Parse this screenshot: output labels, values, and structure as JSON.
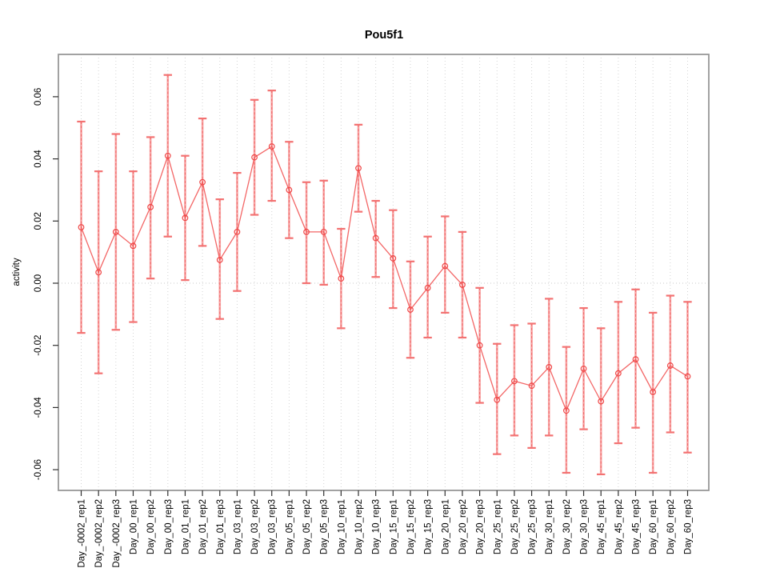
{
  "chart_data": {
    "type": "line",
    "title": "Pou5f1",
    "xlabel": "",
    "ylabel": "activity",
    "legend_position": "none",
    "grid": "vertical-dotted",
    "zero_reference_line": true,
    "ylim": [
      -0.067,
      0.074
    ],
    "yticks": [
      {
        "value": 0.06,
        "label": "0.06"
      },
      {
        "value": 0.04,
        "label": "0.04"
      },
      {
        "value": 0.02,
        "label": "0.02"
      },
      {
        "value": 0.0,
        "label": "0.00"
      },
      {
        "value": -0.02,
        "label": "-0.02"
      },
      {
        "value": -0.04,
        "label": "-0.04"
      },
      {
        "value": -0.06,
        "label": "-0.06"
      }
    ],
    "categories": [
      "Day_-0002_rep1",
      "Day_-0002_rep2",
      "Day_-0002_rep3",
      "Day_00_rep1",
      "Day_00_rep2",
      "Day_00_rep3",
      "Day_01_rep1",
      "Day_01_rep2",
      "Day_01_rep3",
      "Day_03_rep1",
      "Day_03_rep2",
      "Day_03_rep3",
      "Day_05_rep1",
      "Day_05_rep2",
      "Day_05_rep3",
      "Day_10_rep1",
      "Day_10_rep2",
      "Day_10_rep3",
      "Day_15_rep1",
      "Day_15_rep2",
      "Day_15_rep3",
      "Day_20_rep1",
      "Day_20_rep2",
      "Day_20_rep3",
      "Day_25_rep1",
      "Day_25_rep2",
      "Day_25_rep3",
      "Day_30_rep1",
      "Day_30_rep2",
      "Day_30_rep3",
      "Day_45_rep1",
      "Day_45_rep2",
      "Day_45_rep3",
      "Day_60_rep1",
      "Day_60_rep2",
      "Day_60_rep3"
    ],
    "series": [
      {
        "name": "activity",
        "marker": "open-circle",
        "values": [
          0.018,
          0.0035,
          0.0165,
          0.012,
          0.0245,
          0.041,
          0.021,
          0.0325,
          0.0075,
          0.0165,
          0.0405,
          0.044,
          0.03,
          0.0165,
          0.0165,
          0.0015,
          0.037,
          0.0145,
          0.008,
          -0.0085,
          -0.0015,
          0.0055,
          -0.0005,
          -0.02,
          -0.0375,
          -0.0315,
          -0.033,
          -0.027,
          -0.041,
          -0.0275,
          -0.038,
          -0.029,
          -0.0245,
          -0.035,
          -0.0265,
          -0.03
        ],
        "ci_low": [
          -0.016,
          -0.029,
          -0.015,
          -0.0125,
          0.0015,
          0.015,
          0.001,
          0.012,
          -0.0115,
          -0.0025,
          0.022,
          0.0265,
          0.0145,
          0.0,
          -0.0005,
          -0.0145,
          0.023,
          0.002,
          -0.008,
          -0.024,
          -0.0175,
          -0.0095,
          -0.0175,
          -0.0385,
          -0.055,
          -0.049,
          -0.053,
          -0.049,
          -0.061,
          -0.047,
          -0.0615,
          -0.0515,
          -0.0465,
          -0.061,
          -0.048,
          -0.0545
        ],
        "ci_high": [
          0.052,
          0.036,
          0.048,
          0.036,
          0.047,
          0.067,
          0.041,
          0.053,
          0.027,
          0.0355,
          0.059,
          0.062,
          0.0455,
          0.0325,
          0.033,
          0.0175,
          0.051,
          0.0265,
          0.0235,
          0.007,
          0.015,
          0.0215,
          0.0165,
          -0.0015,
          -0.0195,
          -0.0135,
          -0.013,
          -0.005,
          -0.0205,
          -0.008,
          -0.0145,
          -0.006,
          -0.002,
          -0.0095,
          -0.004,
          -0.006
        ]
      }
    ],
    "colors": {
      "background": "#ffffff",
      "point_line": "#f25555",
      "marker_stroke": "#ef4747",
      "error_bar_light": "#f78f8f",
      "error_bar_core": "#ee5555",
      "error_bar_cap": "#f37272",
      "grid": "#d4d4d4",
      "zero_line": "#c9c9c9",
      "plot_border": "#989898",
      "tick": "#303030",
      "text": "#000000"
    }
  }
}
